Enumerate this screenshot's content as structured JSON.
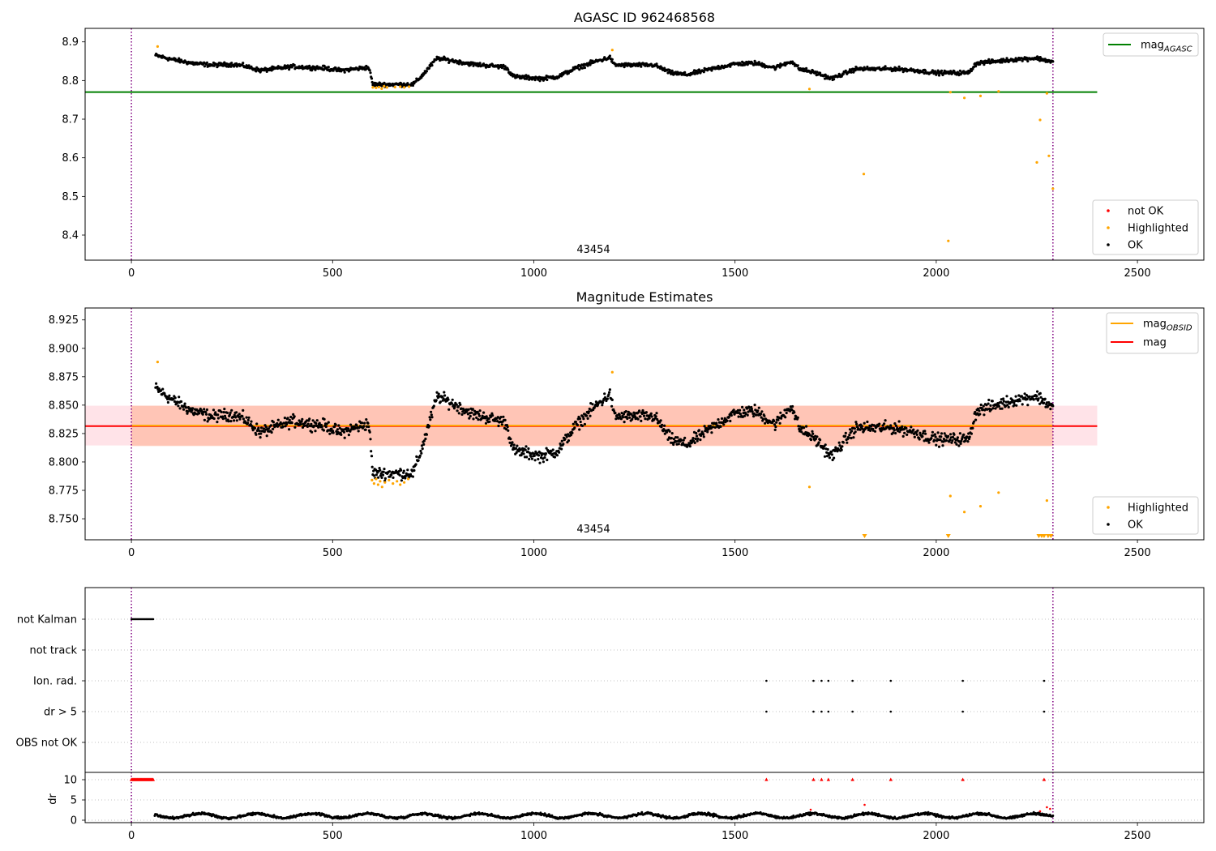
{
  "figure": {
    "top_title": "AGASC ID 962468568",
    "middle_title": "Magnitude Estimates",
    "obsid_label": "43454"
  },
  "colors": {
    "ok": "#000000",
    "highlighted": "#ffa500",
    "not_ok": "#ff0000",
    "mag_agasc": "#008000",
    "mag": "#ff0000",
    "mag_obsid": "#ffa500",
    "band_mag": "#ffc0cb",
    "band_obsid": "#ffa07a",
    "obs_boundary": "#800080",
    "grid": "#b0b0b0"
  },
  "chart_data": [
    {
      "id": "agasc_panel",
      "type": "scatter",
      "title": "AGASC ID 962468568",
      "xlabel": "",
      "ylabel": "",
      "xlim": [
        -115,
        2665
      ],
      "ylim": [
        8.335,
        8.935
      ],
      "xticks": [
        0,
        500,
        1000,
        1500,
        2000,
        2500
      ],
      "xtick_labels": [
        "0",
        "500",
        "1000",
        "1500",
        "2000",
        "2500"
      ],
      "yticks": [
        8.4,
        8.5,
        8.6,
        8.7,
        8.8,
        8.9
      ],
      "ytick_labels": [
        "8.4",
        "8.5",
        "8.6",
        "8.7",
        "8.8",
        "8.9"
      ],
      "hline": {
        "name": "mag_AGASC",
        "y": 8.77,
        "x_range": [
          -115,
          2400
        ]
      },
      "obs_boundaries": [
        0,
        2290
      ],
      "annotation": {
        "text": "43454",
        "x": 1140
      },
      "legend_lines": [
        {
          "label": "mag",
          "subscript": "AGASC",
          "color": "#008000"
        }
      ],
      "legend_points": [
        {
          "label": "not OK",
          "color": "#ff0000"
        },
        {
          "label": "Highlighted",
          "color": "#ffa500"
        },
        {
          "label": "OK",
          "color": "#000000"
        }
      ],
      "ok_series": {
        "name": "OK",
        "x_range": [
          60,
          2290
        ],
        "count": 1500,
        "knots": [
          [
            60,
            8.865
          ],
          [
            100,
            8.855
          ],
          [
            150,
            8.845
          ],
          [
            200,
            8.84
          ],
          [
            250,
            8.842
          ],
          [
            280,
            8.838
          ],
          [
            320,
            8.826
          ],
          [
            400,
            8.836
          ],
          [
            480,
            8.832
          ],
          [
            520,
            8.826
          ],
          [
            590,
            8.834
          ],
          [
            600,
            8.79
          ],
          [
            700,
            8.79
          ],
          [
            720,
            8.81
          ],
          [
            760,
            8.858
          ],
          [
            850,
            8.842
          ],
          [
            930,
            8.835
          ],
          [
            950,
            8.81
          ],
          [
            1020,
            8.805
          ],
          [
            1060,
            8.81
          ],
          [
            1100,
            8.83
          ],
          [
            1150,
            8.848
          ],
          [
            1190,
            8.86
          ],
          [
            1200,
            8.84
          ],
          [
            1300,
            8.84
          ],
          [
            1340,
            8.82
          ],
          [
            1380,
            8.815
          ],
          [
            1450,
            8.832
          ],
          [
            1500,
            8.843
          ],
          [
            1550,
            8.845
          ],
          [
            1600,
            8.833
          ],
          [
            1640,
            8.85
          ],
          [
            1660,
            8.83
          ],
          [
            1700,
            8.82
          ],
          [
            1740,
            8.805
          ],
          [
            1800,
            8.83
          ],
          [
            1900,
            8.83
          ],
          [
            1950,
            8.826
          ],
          [
            1980,
            8.822
          ],
          [
            2000,
            8.82
          ],
          [
            2080,
            8.82
          ],
          [
            2100,
            8.845
          ],
          [
            2200,
            8.855
          ],
          [
            2250,
            8.858
          ],
          [
            2290,
            8.848
          ]
        ],
        "noise": 0.0045
      },
      "highlighted": [
        [
          65,
          8.888
        ],
        [
          600,
          8.782
        ],
        [
          608,
          8.781
        ],
        [
          615,
          8.783
        ],
        [
          622,
          8.779
        ],
        [
          628,
          8.785
        ],
        [
          635,
          8.782
        ],
        [
          655,
          8.783
        ],
        [
          668,
          8.784
        ],
        [
          678,
          8.782
        ],
        [
          690,
          8.784
        ],
        [
          1195,
          8.879
        ],
        [
          1685,
          8.778
        ],
        [
          1820,
          8.558
        ],
        [
          2030,
          8.385
        ],
        [
          2035,
          8.77
        ],
        [
          2070,
          8.755
        ],
        [
          2110,
          8.76
        ],
        [
          2155,
          8.772
        ],
        [
          2250,
          8.588
        ],
        [
          2258,
          8.698
        ],
        [
          2275,
          8.767
        ],
        [
          2280,
          8.605
        ],
        [
          2290,
          8.52
        ]
      ],
      "not_ok": []
    },
    {
      "id": "magnitude_estimates",
      "type": "scatter",
      "title": "Magnitude Estimates",
      "xlabel": "",
      "ylabel": "",
      "xlim": [
        -115,
        2665
      ],
      "ylim": [
        8.7315,
        8.9355
      ],
      "xticks": [
        0,
        500,
        1000,
        1500,
        2000,
        2500
      ],
      "xtick_labels": [
        "0",
        "500",
        "1000",
        "1500",
        "2000",
        "2500"
      ],
      "yticks": [
        8.75,
        8.775,
        8.8,
        8.825,
        8.85,
        8.875,
        8.9,
        8.925
      ],
      "ytick_labels": [
        "8.750",
        "8.775",
        "8.800",
        "8.825",
        "8.850",
        "8.875",
        "8.900",
        "8.925"
      ],
      "mag": 8.8315,
      "mag_band": [
        8.8145,
        8.8495
      ],
      "mag_obsid": 8.832,
      "mag_obsid_band": [
        8.814,
        8.8495
      ],
      "band_x_range": [
        -115,
        2400
      ],
      "obsid_x_range": [
        0,
        2290
      ],
      "obs_boundaries": [
        0,
        2290
      ],
      "annotation": {
        "text": "43454",
        "x": 1140
      },
      "legend_lines": [
        {
          "label": "mag",
          "subscript": "OBSID",
          "color": "#ffa500"
        },
        {
          "label": "mag",
          "subscript": "",
          "color": "#ff0000"
        }
      ],
      "legend_points": [
        {
          "label": "Highlighted",
          "color": "#ffa500"
        },
        {
          "label": "OK",
          "color": "#000000"
        }
      ],
      "highlighted": [
        [
          65,
          8.888
        ],
        [
          598,
          8.784
        ],
        [
          603,
          8.781
        ],
        [
          608,
          8.785
        ],
        [
          613,
          8.78
        ],
        [
          618,
          8.783
        ],
        [
          623,
          8.778
        ],
        [
          630,
          8.782
        ],
        [
          640,
          8.784
        ],
        [
          650,
          8.781
        ],
        [
          660,
          8.783
        ],
        [
          668,
          8.78
        ],
        [
          678,
          8.782
        ],
        [
          688,
          8.785
        ],
        [
          1195,
          8.879
        ],
        [
          1685,
          8.778
        ],
        [
          2035,
          8.77
        ],
        [
          2070,
          8.756
        ],
        [
          2110,
          8.761
        ],
        [
          2155,
          8.773
        ],
        [
          2275,
          8.766
        ]
      ],
      "below_range": [
        1822,
        2030,
        2255,
        2262,
        2268,
        2278,
        2285
      ]
    },
    {
      "id": "flags_and_dr",
      "type": "scatter",
      "xlabel": "",
      "ylabel": "dr",
      "xlim": [
        -115,
        2665
      ],
      "xticks": [
        0,
        500,
        1000,
        1500,
        2000,
        2500
      ],
      "xtick_labels": [
        "0",
        "500",
        "1000",
        "1500",
        "2000",
        "2500"
      ],
      "flag_labels": [
        "not Kalman",
        "not track",
        "Ion. rad.",
        "dr > 5",
        "OBS not OK"
      ],
      "dr_ylim": [
        -0.6,
        11.8
      ],
      "dr_yticks": [
        0,
        5,
        10
      ],
      "dr_ytick_labels": [
        "0",
        "5",
        "10"
      ],
      "obs_boundaries": [
        0,
        2290
      ],
      "not_kalman_x_range": [
        0,
        55
      ],
      "ion_rad_x": [
        1578,
        1695,
        1715,
        1732,
        1792,
        1887,
        2066,
        2268
      ],
      "dr_gt5_x": [
        1578,
        1695,
        1715,
        1732,
        1792,
        1887,
        2066,
        2268
      ],
      "dr_outliers": [
        [
          1822,
          3.8
        ],
        [
          2258,
          2.2
        ],
        [
          2275,
          3.2
        ],
        [
          2283,
          2.8
        ],
        [
          1688,
          2.6
        ]
      ],
      "dr_points_x_range": [
        58,
        2290
      ],
      "dr_level": 1.1
    }
  ]
}
